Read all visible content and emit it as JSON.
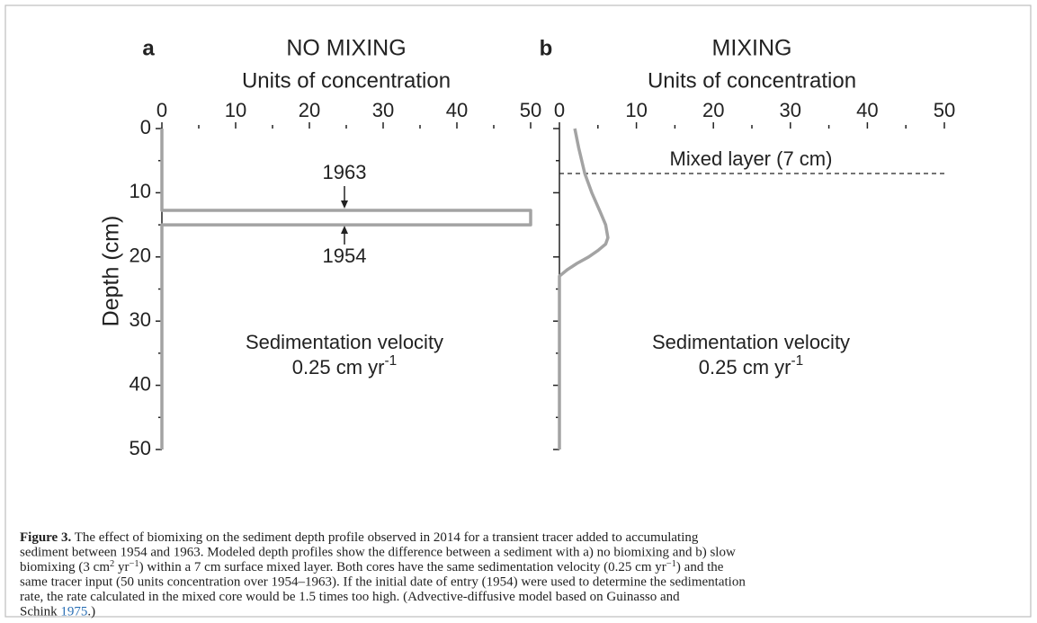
{
  "chart_data": [
    {
      "type": "line",
      "panel": "a",
      "title": "NO MIXING",
      "x_label": "Units of concentration",
      "y_label": "Depth (cm)",
      "xlim": [
        0,
        50
      ],
      "xticks": [
        0,
        10,
        20,
        30,
        40,
        50
      ],
      "xminorticks": [
        5,
        15,
        25,
        35,
        45
      ],
      "ylim": [
        0,
        50
      ],
      "yticks": [
        0,
        10,
        20,
        30,
        40,
        50
      ],
      "yminorticks": [
        5,
        15,
        25,
        35,
        45
      ],
      "y_inverted": true,
      "show_yticklabels": true,
      "series": [
        {
          "color": "#a3a3a3",
          "depth": [
            0,
            12.75,
            12.75,
            15,
            15,
            50
          ],
          "values": [
            0,
            0,
            50,
            50,
            0,
            0
          ]
        }
      ],
      "annotations": [
        "1963",
        "1954",
        "Sedimentation velocity",
        [
          "0.25 cm yr",
          {
            "sup": "-1"
          }
        ]
      ]
    },
    {
      "type": "line",
      "panel": "b",
      "title": "MIXING",
      "x_label": "Units of concentration",
      "xlim": [
        0,
        50
      ],
      "xticks": [
        0,
        10,
        20,
        30,
        40,
        50
      ],
      "xminorticks": [
        5,
        15,
        25,
        35,
        45
      ],
      "ylim": [
        0,
        50
      ],
      "yticks": [
        0,
        10,
        20,
        30,
        40,
        50
      ],
      "yminorticks": [
        5,
        15,
        25,
        35,
        45
      ],
      "y_inverted": true,
      "show_yticklabels": false,
      "series": [
        {
          "color": "#a3a3a3",
          "depth": [
            0,
            3,
            7,
            10,
            13,
            15,
            17,
            18,
            19,
            20,
            21,
            22,
            23,
            50
          ],
          "values": [
            2,
            2.5,
            3.3,
            4.2,
            5.3,
            6,
            6.3,
            6,
            5,
            3.8,
            2.3,
            1,
            0,
            0
          ]
        }
      ],
      "mixed_layer_depth": 7,
      "annotations": [
        "Mixed layer (7 cm)",
        "Sedimentation velocity",
        [
          "0.25 cm yr",
          {
            "sup": "-1"
          }
        ]
      ]
    }
  ],
  "caption": {
    "lines": [
      [
        {
          "bold": "Figure 3."
        },
        " The effect of biomixing on the sediment depth profile observed in 2014 for a transient tracer added to accumulating"
      ],
      [
        "sediment between 1954 and 1963. Modeled depth profiles show the difference between a sediment with a) no biomixing and b) slow"
      ],
      [
        "biomixing (3 cm",
        {
          "sup": "2"
        },
        " yr",
        {
          "sup": "−1"
        },
        ") within a 7 cm surface mixed layer. Both cores have the same sedimentation velocity (0.25 cm yr",
        {
          "sup": "−1"
        },
        ") and the"
      ],
      [
        "same tracer input (50 units concentration over 1954–1963). If the initial date of entry (1954) were used to determine the sedimentation"
      ],
      [
        "rate, the rate calculated in the mixed core would be 1.5 times too high. (Advective-diffusive model based on Guinasso and"
      ],
      [
        "Schink ",
        {
          "link": "1975"
        },
        ".)"
      ]
    ]
  }
}
